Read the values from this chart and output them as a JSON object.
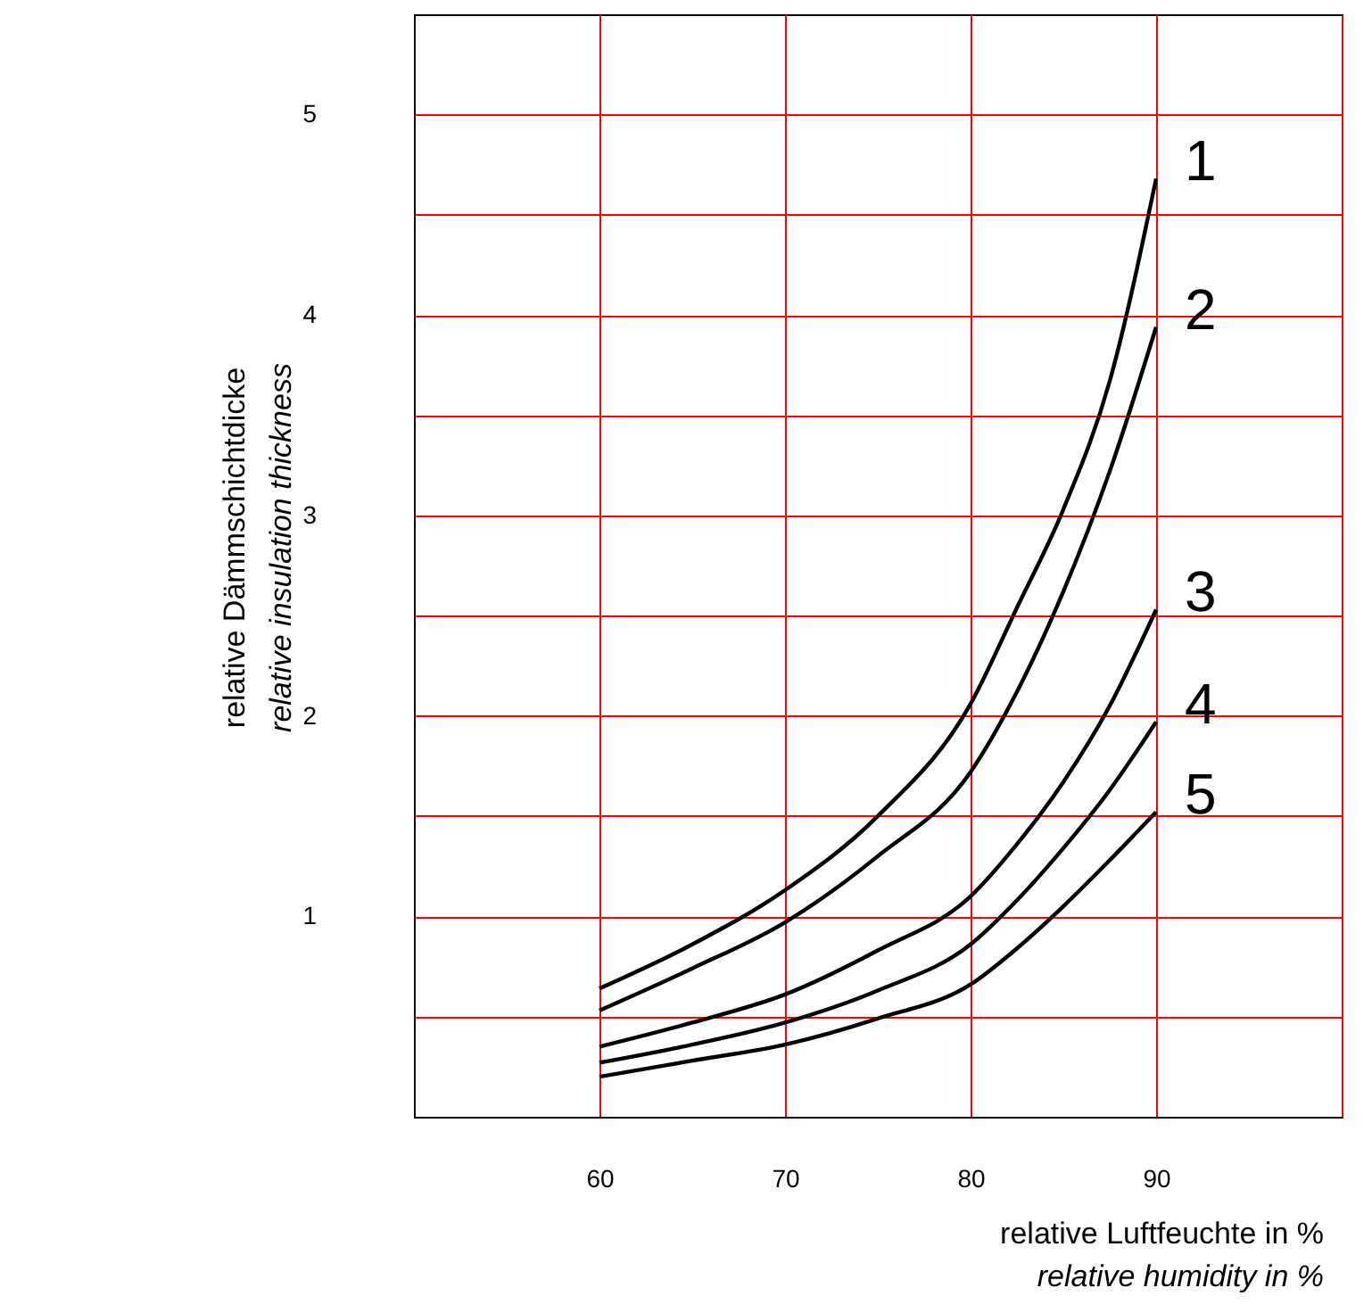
{
  "chart_data": {
    "type": "line",
    "xlabel": "relative Luftfeuchte in %\nrelative humidity in %",
    "ylabel": "relative Dämmschichtdicke\nrelative insulation thickness",
    "x": [
      60,
      65,
      70,
      75,
      80,
      82.5,
      85,
      87.5,
      90
    ],
    "series": [
      {
        "name": "1",
        "color": "#000000",
        "values": [
          0.64,
          0.86,
          1.13,
          1.5,
          2.06,
          2.54,
          3.03,
          3.67,
          4.68
        ]
      },
      {
        "name": "2",
        "color": "#000000",
        "values": [
          0.53,
          0.74,
          0.97,
          1.3,
          1.72,
          2.12,
          2.62,
          3.22,
          3.94
        ]
      },
      {
        "name": "3",
        "color": "#000000",
        "values": [
          0.35,
          0.47,
          0.61,
          0.83,
          1.1,
          1.36,
          1.67,
          2.05,
          2.53
        ]
      },
      {
        "name": "4",
        "color": "#000000",
        "values": [
          0.27,
          0.36,
          0.47,
          0.63,
          0.86,
          1.08,
          1.34,
          1.63,
          1.97
        ]
      },
      {
        "name": "5",
        "color": "#000000",
        "values": [
          0.2,
          0.28,
          0.36,
          0.49,
          0.66,
          0.84,
          1.05,
          1.28,
          1.52
        ]
      }
    ],
    "xlim": [
      50,
      100
    ],
    "xticks": [
      {
        "value": 50,
        "label": null
      },
      60,
      70,
      80,
      90,
      {
        "value": 100,
        "label": null
      }
    ],
    "ylim": [
      0,
      5.5
    ],
    "yticks": [
      {
        "value": 0.5,
        "label": null
      },
      1,
      {
        "value": 1.5,
        "label": null
      },
      2,
      {
        "value": 2.5,
        "label": null
      },
      3,
      {
        "value": 3.5,
        "label": null
      },
      4,
      {
        "value": 4.5,
        "label": null
      },
      5
    ],
    "grid": true,
    "marker": "none",
    "line_style": "solid"
  }
}
